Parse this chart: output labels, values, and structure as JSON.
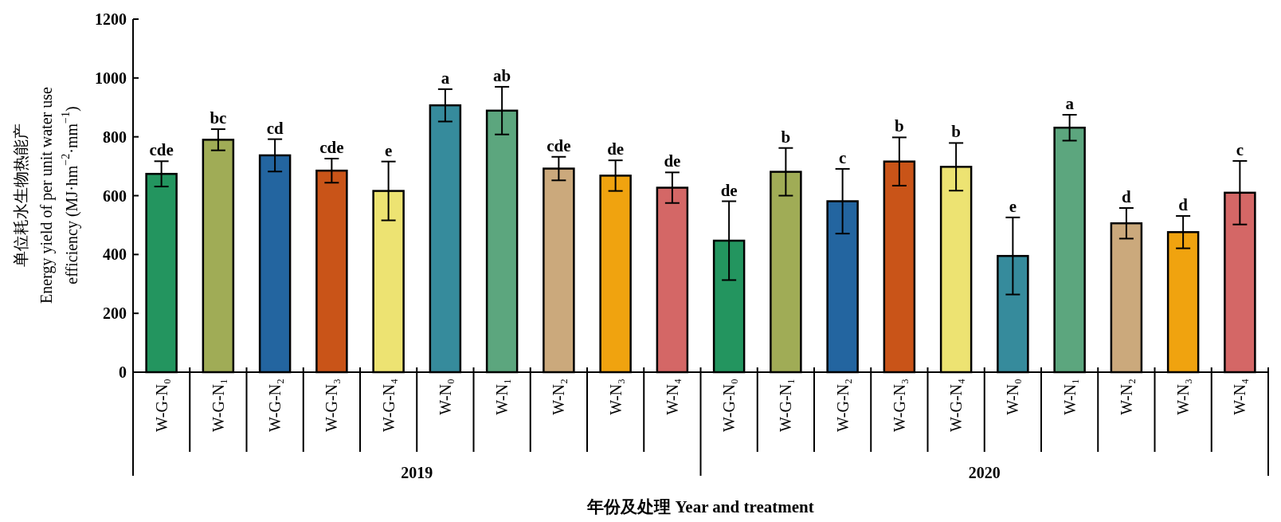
{
  "chart_data": {
    "type": "bar",
    "ylabel": "单位耗水生物热能产\nEnergy yield of per unit water use\nefficiency (MJ·hm$^{−2}$·mm$^{−1}$)",
    "xlabel": "年份及处理 Year and treatment",
    "categories": [
      "W-G-N₀",
      "W-G-N₁",
      "W-G-N₂",
      "W-G-N₃",
      "W-G-N₄",
      "W-N₀",
      "W-N₁",
      "W-N₂",
      "W-N₃",
      "W-N₄",
      "W-G-N₀",
      "W-G-N₁",
      "W-G-N₂",
      "W-G-N₃",
      "W-G-N₄",
      "W-N₀",
      "W-N₁",
      "W-N₂",
      "W-N₃",
      "W-N₄"
    ],
    "values": [
      674,
      790,
      737,
      685,
      616,
      907,
      889,
      692,
      668,
      627,
      447,
      681,
      581,
      716,
      698,
      395,
      831,
      506,
      476,
      610
    ],
    "errors": [
      43,
      36,
      55,
      41,
      100,
      55,
      81,
      40,
      52,
      52,
      134,
      81,
      110,
      82,
      81,
      131,
      44,
      52,
      55,
      108
    ],
    "value_labels": [
      "cde",
      "bc",
      "cd",
      "cde",
      "e",
      "a",
      "ab",
      "cde",
      "de",
      "de",
      "de",
      "b",
      "c",
      "b",
      "b",
      "e",
      "a",
      "d",
      "d",
      "c"
    ],
    "colors": [
      "#23955f",
      "#a0ac56",
      "#2365a0",
      "#c95418",
      "#ede372",
      "#368b9c",
      "#5ca67e",
      "#cba97c",
      "#f0a30f",
      "#d46766",
      "#23955f",
      "#a0ac56",
      "#2365a0",
      "#c95418",
      "#ede372",
      "#368b9c",
      "#5ca67e",
      "#cba97c",
      "#f0a30f",
      "#d46766"
    ],
    "annotations": [
      "2019",
      "2020"
    ],
    "ylim": [
      0,
      1200
    ],
    "yticks": [
      0,
      200,
      400,
      600,
      800,
      1000,
      1200
    ]
  }
}
